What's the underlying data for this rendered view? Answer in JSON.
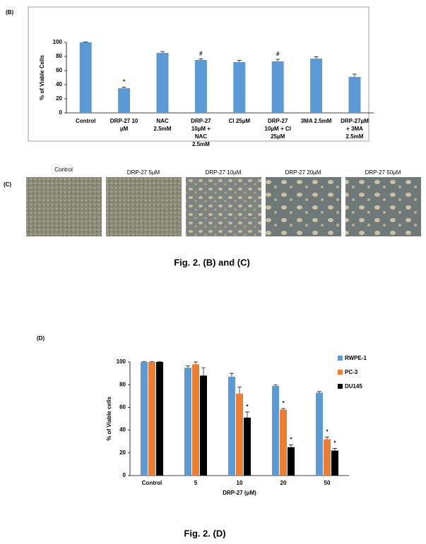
{
  "panel_labels": [
    "(B)",
    "(C)",
    "(D)"
  ],
  "micrographs": [
    "Control",
    "DRP-27 5µM",
    "DRP-27 10µM",
    "DRP-27 20µM",
    "DRP-27 50µM"
  ],
  "captions": [
    "Fig. 2. (B) and (C)",
    "Fig. 2. (D)"
  ],
  "chart_data": [
    {
      "type": "bar",
      "ylabel": "% of Viable Cells",
      "categories": [
        [
          "Control"
        ],
        [
          "DRP-27 10",
          "µM"
        ],
        [
          "NAC",
          "2.5mM"
        ],
        [
          "DRP-27",
          "10µM +",
          "NAC",
          "2.5mM"
        ],
        [
          "CI 25µM"
        ],
        [
          "DRP-27",
          "10µM + CI",
          "25µM"
        ],
        [
          "3MA 2.5mM"
        ],
        [
          "DRP-27µM",
          "+ 3MA",
          "2.5mM"
        ]
      ],
      "values": [
        100,
        35,
        85,
        75,
        72,
        73,
        77,
        51
      ],
      "errors": [
        0.5,
        1.5,
        2,
        1.5,
        2.5,
        3,
        2.5,
        4
      ],
      "annotations": [
        null,
        "*",
        null,
        "#",
        null,
        "#",
        null,
        null
      ],
      "color": "#5b9bd5",
      "ylim": [
        0,
        100
      ],
      "yticks": [
        0,
        20,
        40,
        60,
        80,
        100
      ],
      "grid": false
    },
    {
      "type": "bar",
      "xlabel": "DRP-27 (μM)",
      "ylabel": "% of Viable cells",
      "categories": [
        "Control",
        "5",
        "10",
        "20",
        "50"
      ],
      "series": [
        {
          "name": "RWPE-1",
          "color": "#5b9bd5",
          "values": [
            100,
            95,
            87,
            79,
            73
          ],
          "errors": [
            0.5,
            1.5,
            3,
            1,
            1
          ],
          "annotations": [
            null,
            null,
            null,
            null,
            null
          ]
        },
        {
          "name": "PC-3",
          "color": "#ed7d31",
          "values": [
            100,
            98,
            72,
            58,
            32
          ],
          "errors": [
            0.5,
            2,
            6,
            1,
            2
          ],
          "annotations": [
            null,
            null,
            null,
            "*",
            "*"
          ]
        },
        {
          "name": "DU145",
          "color": "#000000",
          "values": [
            100,
            88,
            51,
            25,
            22
          ],
          "errors": [
            0.5,
            7,
            5,
            2,
            2
          ],
          "annotations": [
            null,
            null,
            "*",
            "*",
            "*"
          ]
        }
      ],
      "ylim": [
        0,
        100
      ],
      "yticks": [
        0,
        20,
        40,
        60,
        80,
        100
      ],
      "grid": false,
      "legend": "right"
    }
  ]
}
